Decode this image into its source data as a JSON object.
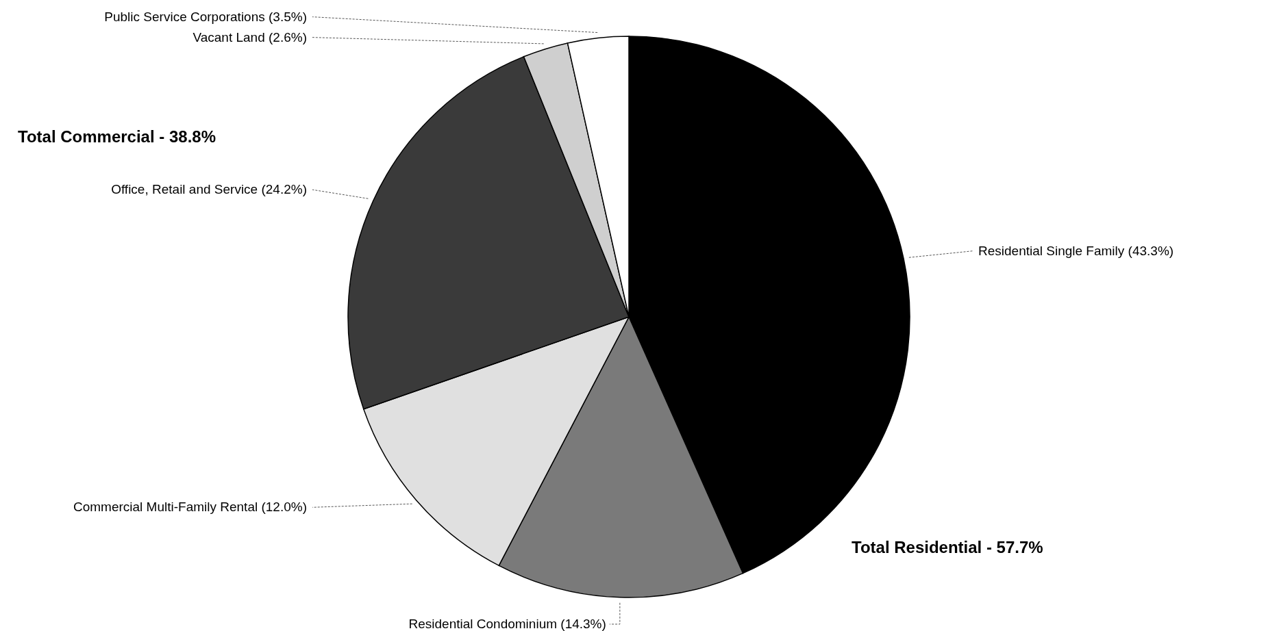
{
  "chart_data": {
    "type": "pie",
    "categories": [
      "Residential Single Family (43.3%)",
      "Residential Condominium (14.3%)",
      "Commercial Multi-Family Rental (12.0%)",
      "Office, Retail and Service (24.2%)",
      "Vacant Land (2.6%)",
      "Public Service Corporations (3.5%)"
    ],
    "values": [
      43.3,
      14.3,
      12.0,
      24.2,
      2.6,
      3.5
    ],
    "colors": [
      "#000000",
      "#7a7a7a",
      "#e0e0e0",
      "#3a3a3a",
      "#cfcfcf",
      "#ffffff"
    ],
    "annotations": [
      "Total Commercial - 38.8%",
      "Total Residential - 57.7%"
    ]
  }
}
